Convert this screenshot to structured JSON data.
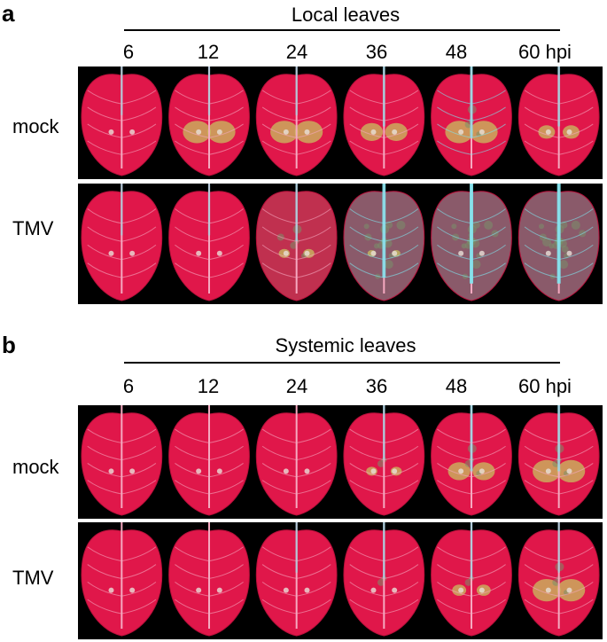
{
  "panels": [
    {
      "letter": "a",
      "title": "Local leaves",
      "timepoints": [
        "6",
        "12",
        "24",
        "36",
        "48",
        "60 hpi"
      ],
      "rows": [
        "mock",
        "TMV"
      ]
    },
    {
      "letter": "b",
      "title": "Systemic leaves",
      "timepoints": [
        "6",
        "12",
        "24",
        "36",
        "48",
        "60 hpi"
      ],
      "rows": [
        "mock",
        "TMV"
      ]
    }
  ],
  "colors": {
    "leaf": "#e0174a",
    "leaf_dark": "#b80f3a",
    "vein": "#f5a9c0",
    "midrib_cyan": "#7fe6f0",
    "lesion_yellow": "#c8c060",
    "background": "#000000"
  }
}
